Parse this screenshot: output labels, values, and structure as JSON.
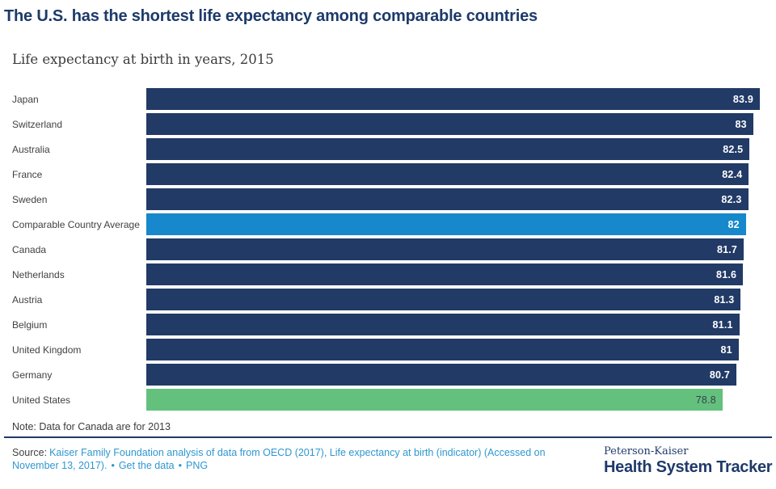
{
  "chart_data": {
    "type": "bar",
    "orientation": "horizontal",
    "title": "The U.S. has the shortest life expectancy among comparable countries",
    "subtitle": "Life expectancy at birth in years, 2015",
    "categories": [
      "Japan",
      "Switzerland",
      "Australia",
      "France",
      "Sweden",
      "Comparable Country Average",
      "Canada",
      "Netherlands",
      "Austria",
      "Belgium",
      "United Kingdom",
      "Germany",
      "United States"
    ],
    "values": [
      83.9,
      83,
      82.5,
      82.4,
      82.3,
      82,
      81.7,
      81.6,
      81.3,
      81.1,
      81,
      80.7,
      78.8
    ],
    "value_labels": [
      "83.9",
      "83",
      "82.5",
      "82.4",
      "82.3",
      "82",
      "81.7",
      "81.6",
      "81.3",
      "81.1",
      "81",
      "80.7",
      "78.8"
    ],
    "bar_colors": [
      "#213a66",
      "#213a66",
      "#213a66",
      "#213a66",
      "#213a66",
      "#1688cb",
      "#213a66",
      "#213a66",
      "#213a66",
      "#213a66",
      "#213a66",
      "#213a66",
      "#63c17d"
    ],
    "value_text_colors": [
      "#ffffff",
      "#ffffff",
      "#ffffff",
      "#ffffff",
      "#ffffff",
      "#ffffff",
      "#ffffff",
      "#ffffff",
      "#ffffff",
      "#ffffff",
      "#ffffff",
      "#ffffff",
      "#37414b"
    ],
    "xlim": [
      0,
      83.9
    ],
    "grid": false,
    "legend": false,
    "accent_colors": {
      "navy": "#213a66",
      "average_blue": "#1688cb",
      "us_green": "#63c17d",
      "link_blue": "#2e97d1"
    }
  },
  "note": {
    "text": "Note: Data for Canada are for 2013"
  },
  "source": {
    "label": "Source:",
    "citation": "Kaiser Family Foundation analysis of data from OECD (2017), Life expectancy at birth (indicator) (Accessed on November 13, 2017).",
    "separator": "•",
    "get_data_label": "Get the data",
    "png_label": "PNG"
  },
  "branding": {
    "line1": "Peterson-Kaiser",
    "line2": "Health System Tracker"
  }
}
